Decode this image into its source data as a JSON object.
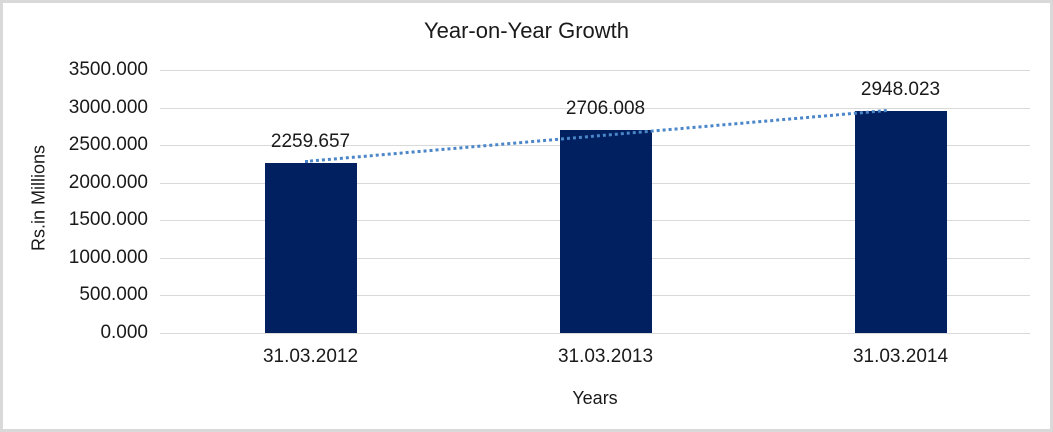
{
  "chart_data": {
    "type": "bar",
    "title": "Year-on-Year Growth",
    "xlabel": "Years",
    "ylabel": "Rs.in Millions",
    "categories": [
      "31.03.2012",
      "31.03.2013",
      "31.03.2014"
    ],
    "values": [
      2259.657,
      2706.008,
      2948.023
    ],
    "value_labels": [
      "2259.657",
      "2706.008",
      "2948.023"
    ],
    "y_ticks": [
      "0.000",
      "500.000",
      "1000.000",
      "1500.000",
      "2000.000",
      "2500.000",
      "3000.000",
      "3500.000"
    ],
    "y_tick_values": [
      0,
      500,
      1000,
      1500,
      2000,
      2500,
      3000,
      3500
    ],
    "ylim": [
      0,
      3500
    ],
    "grid": true,
    "legend": false,
    "bar_color": "#002060",
    "grid_color": "#d9d9d9",
    "border_color": "#d9d9d9",
    "trendline": {
      "type": "linear",
      "style": "dotted",
      "color": "#4a86c8"
    }
  }
}
